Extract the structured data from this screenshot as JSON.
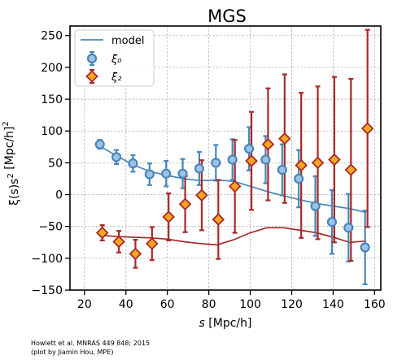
{
  "chart_data": {
    "type": "scatter",
    "title": "MGS",
    "xlabel": "s [Mpc/h]",
    "ylabel": "ξ(s)s² [Mpc/h]²",
    "xlim": [
      13,
      163
    ],
    "ylim": [
      -150,
      265
    ],
    "xticks": [
      20,
      40,
      60,
      80,
      100,
      120,
      140,
      160
    ],
    "yticks": [
      -150,
      -100,
      -50,
      0,
      50,
      100,
      150,
      200,
      250
    ],
    "grid": true,
    "legend_position": "top-left",
    "legend": [
      "model",
      "ξ₀",
      "ξ₂"
    ],
    "series": [
      {
        "name": "ξ₀",
        "marker": "circle",
        "color": "#4a86b8",
        "points": [
          {
            "x": 28,
            "y": 79,
            "yerr": 7
          },
          {
            "x": 36,
            "y": 59,
            "yerr": 11
          },
          {
            "x": 44,
            "y": 49,
            "yerr": 13
          },
          {
            "x": 52,
            "y": 32,
            "yerr": 17
          },
          {
            "x": 60,
            "y": 33,
            "yerr": 20
          },
          {
            "x": 68,
            "y": 33,
            "yerr": 23
          },
          {
            "x": 76,
            "y": 41,
            "yerr": 26
          },
          {
            "x": 84,
            "y": 50,
            "yerr": 28
          },
          {
            "x": 92,
            "y": 55,
            "yerr": 32
          },
          {
            "x": 100,
            "y": 72,
            "yerr": 34
          },
          {
            "x": 108,
            "y": 55,
            "yerr": 37
          },
          {
            "x": 116,
            "y": 39,
            "yerr": 40
          },
          {
            "x": 124,
            "y": 25,
            "yerr": 45
          },
          {
            "x": 132,
            "y": -18,
            "yerr": 47
          },
          {
            "x": 140,
            "y": -43,
            "yerr": 50
          },
          {
            "x": 148,
            "y": -52,
            "yerr": 53
          },
          {
            "x": 156,
            "y": -83,
            "yerr": 58
          }
        ]
      },
      {
        "name": "ξ₂",
        "marker": "diamond",
        "color": "#a82828",
        "fill": "#f5a623",
        "points": [
          {
            "x": 28,
            "y": -60,
            "yerr": 12
          },
          {
            "x": 36,
            "y": -74,
            "yerr": 17
          },
          {
            "x": 44,
            "y": -93,
            "yerr": 22
          },
          {
            "x": 52,
            "y": -77,
            "yerr": 26
          },
          {
            "x": 60,
            "y": -35,
            "yerr": 37
          },
          {
            "x": 68,
            "y": -15,
            "yerr": 44
          },
          {
            "x": 76,
            "y": -1,
            "yerr": 55
          },
          {
            "x": 84,
            "y": -39,
            "yerr": 62
          },
          {
            "x": 92,
            "y": 13,
            "yerr": 73
          },
          {
            "x": 100,
            "y": 53,
            "yerr": 77
          },
          {
            "x": 108,
            "y": 79,
            "yerr": 88
          },
          {
            "x": 116,
            "y": 88,
            "yerr": 101
          },
          {
            "x": 124,
            "y": 46,
            "yerr": 114
          },
          {
            "x": 132,
            "y": 50,
            "yerr": 120
          },
          {
            "x": 140,
            "y": 55,
            "yerr": 130
          },
          {
            "x": 148,
            "y": 39,
            "yerr": 143
          },
          {
            "x": 156,
            "y": 104,
            "yerr": 155
          }
        ]
      },
      {
        "name": "model",
        "kind": "line",
        "color": "#4a86b8",
        "x": [
          28,
          36,
          44,
          52,
          60,
          68,
          76,
          84,
          92,
          100,
          108,
          116,
          124,
          132,
          140,
          148,
          156
        ],
        "y": [
          75,
          60,
          46,
          36,
          30,
          25,
          22,
          23,
          21,
          13,
          5,
          -2,
          -8,
          -14,
          -18,
          -22,
          -28
        ]
      },
      {
        "kind": "line",
        "color": "#a82828",
        "x": [
          28,
          36,
          44,
          52,
          60,
          68,
          76,
          84,
          92,
          100,
          108,
          116,
          124,
          132,
          140,
          148,
          156
        ],
        "y": [
          -64,
          -66,
          -67,
          -68,
          -70,
          -74,
          -77,
          -79,
          -71,
          -60,
          -52,
          -52,
          -56,
          -60,
          -67,
          -75,
          -73
        ]
      }
    ]
  },
  "credit_lines": [
    "Howlett et al. MNRAS 449 848; 2015",
    "(plot by Jiamin Hou, MPE)"
  ]
}
